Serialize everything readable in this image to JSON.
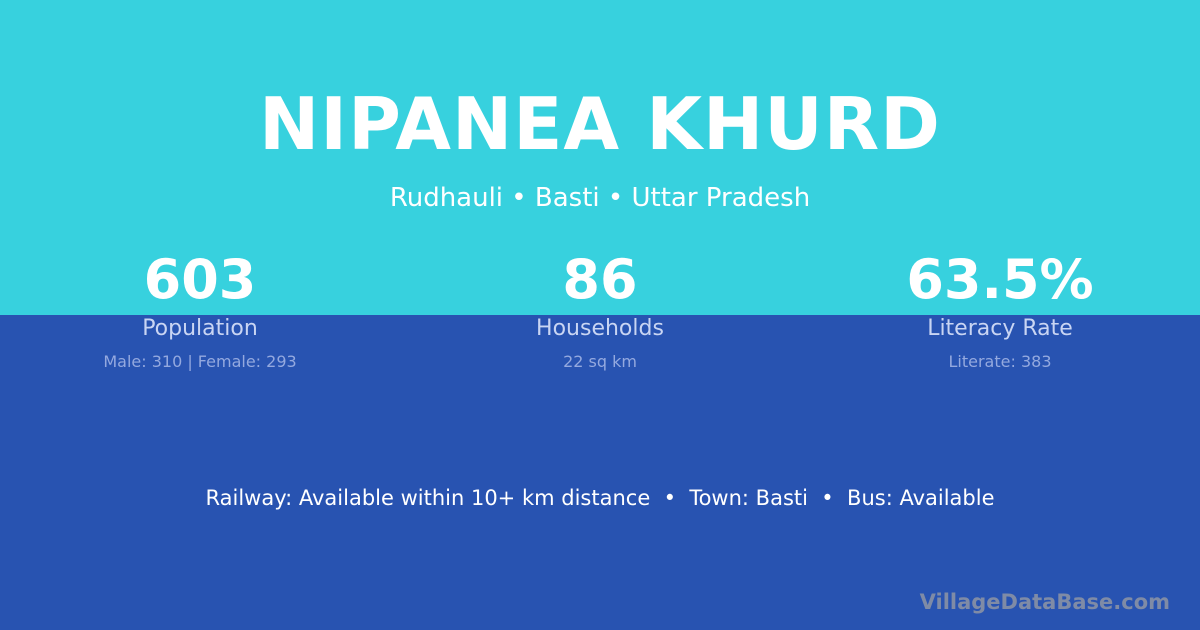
{
  "title": "NIPANEA KHURD",
  "subtitle": "Rudhauli • Basti • Uttar Pradesh",
  "stats": [
    {
      "value": "603",
      "label": "Population",
      "detail": "Male: 310 | Female: 293"
    },
    {
      "value": "86",
      "label": "Households",
      "detail": "22 sq km"
    },
    {
      "value": "63.5%",
      "label": "Literacy Rate",
      "detail": "Literate: 383"
    }
  ],
  "info": "Railway: Available within 10+ km distance  •  Town: Basti  •  Bus: Available",
  "brand": "VillageDataBase.com",
  "colors": {
    "top": "#37d1de",
    "bottom": "#2853b1"
  }
}
